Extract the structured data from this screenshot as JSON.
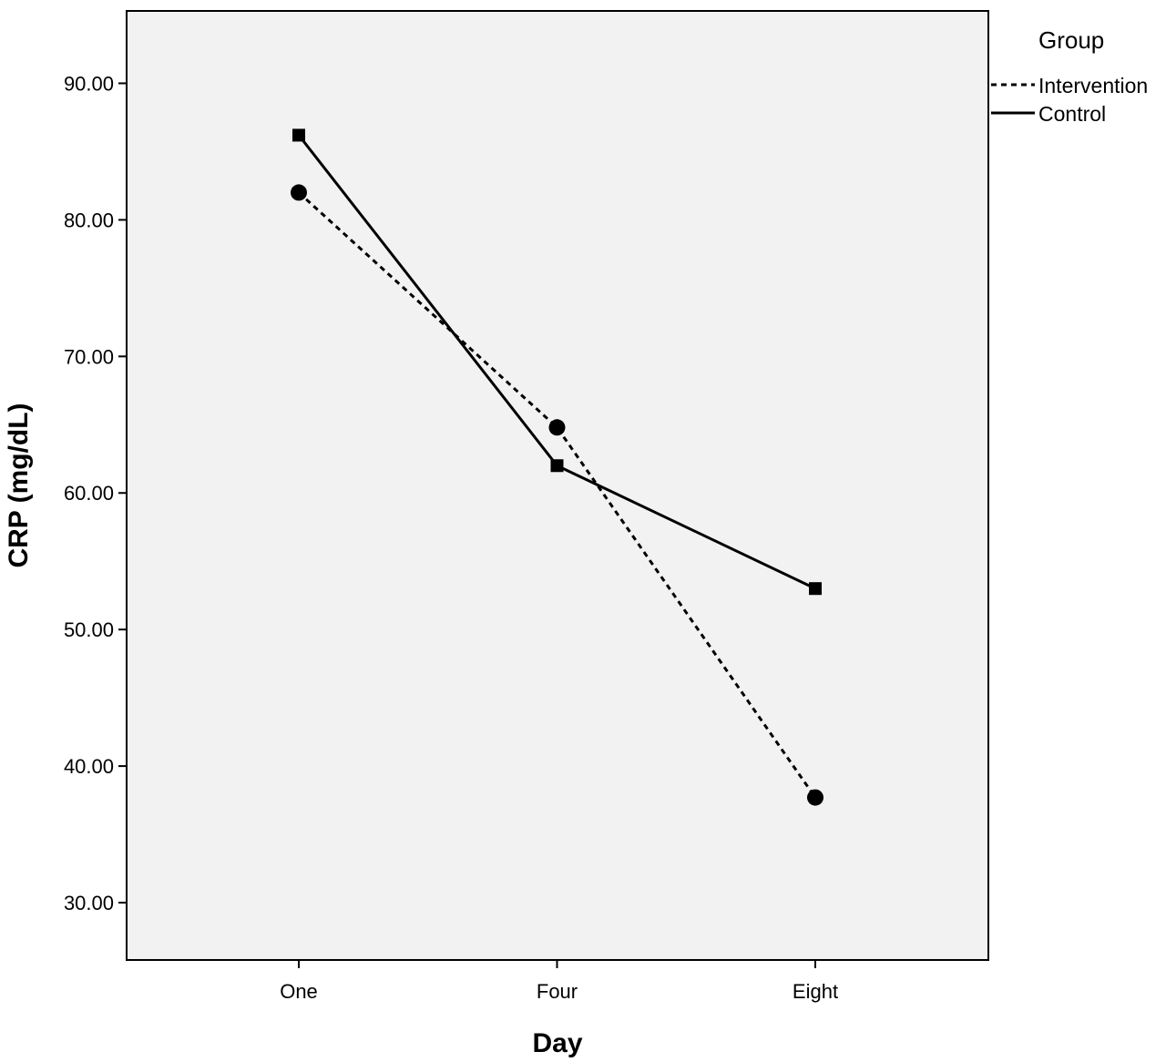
{
  "chart_data": {
    "type": "line",
    "title": "",
    "xlabel": "Day",
    "ylabel": "CRP (mg/dL)",
    "categories": [
      "One",
      "Four",
      "Eight"
    ],
    "ylim": [
      25.8,
      95.3
    ],
    "yticks": [
      30,
      40,
      50,
      60,
      70,
      80,
      90
    ],
    "ytick_labels": [
      "30.00",
      "40.00",
      "50.00",
      "60.00",
      "70.00",
      "80.00",
      "90.00"
    ],
    "grid": false,
    "legend": {
      "title": "Group",
      "placement": "outside-top-right"
    },
    "series": [
      {
        "name": "Intervention",
        "values": [
          82.0,
          64.8,
          37.7
        ],
        "line_style": "dashed",
        "marker": "circle",
        "color": "#000000"
      },
      {
        "name": "Control",
        "values": [
          86.2,
          62.0,
          53.0
        ],
        "line_style": "solid",
        "marker": "square",
        "color": "#000000"
      }
    ],
    "colors": {
      "plot_background": "#f2f2f2",
      "axis": "#000000"
    }
  }
}
